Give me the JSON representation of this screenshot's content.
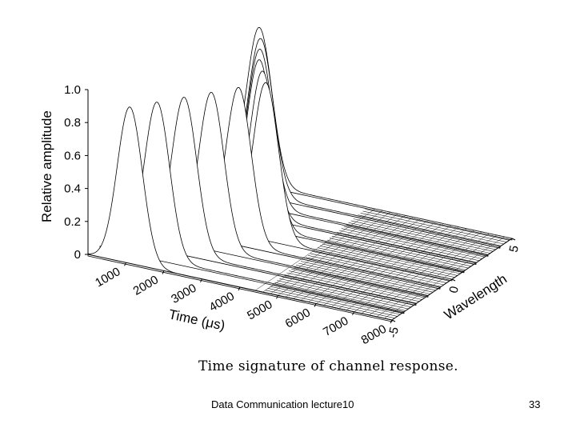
{
  "chart_data": {
    "type": "surface",
    "zlabel": "Relative amplitude",
    "xlabel": "Time (μs)",
    "ylabel": "Wavelength",
    "x_ticks": [
      "1000",
      "2000",
      "3000",
      "4000",
      "5000",
      "6000",
      "7000",
      "8000"
    ],
    "y_ticks": [
      "-5",
      "0",
      "5"
    ],
    "z_ticks": [
      "0",
      "0.2",
      "0.4",
      "0.6",
      "0.8",
      "1.0"
    ],
    "xlim": [
      0,
      8000
    ],
    "ylim": [
      -5,
      5
    ],
    "zlim": [
      0,
      1.0
    ],
    "wavelength_slices": [
      -5,
      -4,
      -3,
      -2,
      -1,
      0,
      1,
      2,
      3,
      4,
      5
    ],
    "peak_time_us": [
      1100,
      1500,
      1900,
      2300,
      2700,
      3100,
      2700,
      2300,
      2000,
      1700,
      1350
    ],
    "peak_amplitude": [
      0.95,
      0.95,
      0.95,
      0.95,
      0.95,
      0.95,
      0.95,
      0.95,
      0.95,
      0.95,
      0.95
    ],
    "pulse_width_us": 330,
    "grid": false,
    "legend": "none"
  },
  "caption": "Time signature of channel response.",
  "footer": {
    "title": "Data Communication lecture10",
    "page": "33"
  }
}
